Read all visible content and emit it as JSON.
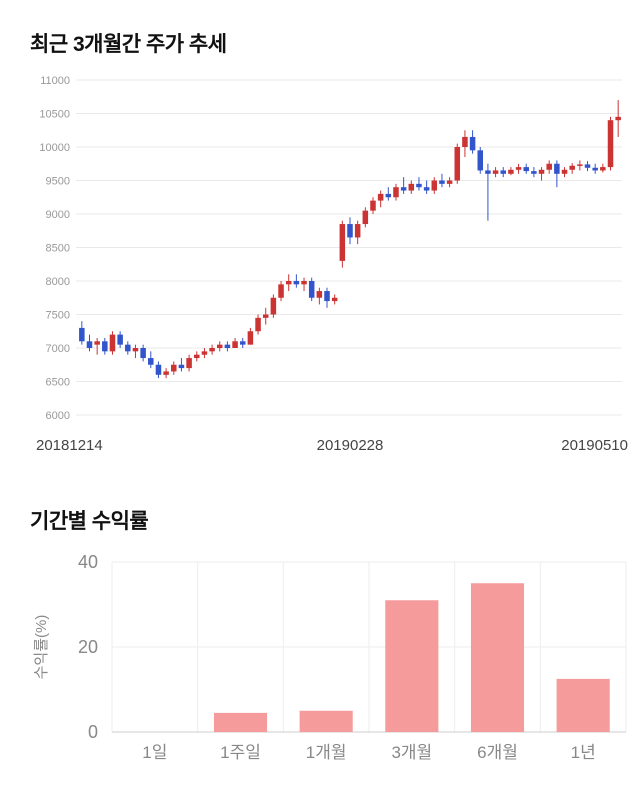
{
  "price_section": {
    "title": "최근 3개월간 주가 추세"
  },
  "returns_section": {
    "title": "기간별 수익률"
  },
  "chart_data": [
    {
      "type": "candlestick",
      "title": "최근 3개월간 주가 추세",
      "ylim": [
        6000,
        11000
      ],
      "ytick_step": 500,
      "x_labels": [
        "20181214",
        "20190228",
        "20190510"
      ],
      "up_color": "#cc3333",
      "down_color": "#3355cc",
      "grid": true,
      "candles": [
        [
          7300,
          7400,
          7050,
          7100
        ],
        [
          7100,
          7200,
          6950,
          7000
        ],
        [
          7050,
          7150,
          6900,
          7100
        ],
        [
          7100,
          7150,
          6900,
          6950
        ],
        [
          6950,
          7250,
          6900,
          7200
        ],
        [
          7200,
          7250,
          7000,
          7050
        ],
        [
          7050,
          7100,
          6900,
          6950
        ],
        [
          6950,
          7050,
          6850,
          7000
        ],
        [
          7000,
          7050,
          6800,
          6850
        ],
        [
          6850,
          6950,
          6700,
          6750
        ],
        [
          6750,
          6800,
          6550,
          6600
        ],
        [
          6600,
          6700,
          6550,
          6650
        ],
        [
          6650,
          6800,
          6600,
          6750
        ],
        [
          6750,
          6850,
          6650,
          6700
        ],
        [
          6700,
          6900,
          6650,
          6850
        ],
        [
          6850,
          6950,
          6800,
          6900
        ],
        [
          6900,
          7000,
          6850,
          6950
        ],
        [
          6950,
          7050,
          6900,
          7000
        ],
        [
          7000,
          7100,
          6950,
          7050
        ],
        [
          7050,
          7100,
          6950,
          7000
        ],
        [
          7000,
          7150,
          7000,
          7100
        ],
        [
          7100,
          7150,
          7000,
          7050
        ],
        [
          7050,
          7300,
          7050,
          7250
        ],
        [
          7250,
          7500,
          7200,
          7450
        ],
        [
          7450,
          7600,
          7350,
          7500
        ],
        [
          7500,
          7800,
          7450,
          7750
        ],
        [
          7750,
          8000,
          7700,
          7950
        ],
        [
          7950,
          8100,
          7850,
          8000
        ],
        [
          8000,
          8100,
          7900,
          7950
        ],
        [
          7950,
          8050,
          7850,
          8000
        ],
        [
          8000,
          8050,
          7700,
          7750
        ],
        [
          7750,
          7900,
          7650,
          7850
        ],
        [
          7850,
          7900,
          7600,
          7700
        ],
        [
          7700,
          7800,
          7650,
          7750
        ],
        [
          8300,
          8900,
          8200,
          8850
        ],
        [
          8850,
          8950,
          8550,
          8650
        ],
        [
          8650,
          8900,
          8550,
          8850
        ],
        [
          8850,
          9100,
          8800,
          9050
        ],
        [
          9050,
          9250,
          9000,
          9200
        ],
        [
          9200,
          9350,
          9100,
          9300
        ],
        [
          9300,
          9400,
          9200,
          9250
        ],
        [
          9250,
          9450,
          9200,
          9400
        ],
        [
          9400,
          9550,
          9300,
          9350
        ],
        [
          9350,
          9500,
          9300,
          9450
        ],
        [
          9450,
          9550,
          9350,
          9400
        ],
        [
          9400,
          9500,
          9300,
          9350
        ],
        [
          9350,
          9550,
          9300,
          9500
        ],
        [
          9500,
          9600,
          9400,
          9450
        ],
        [
          9450,
          9550,
          9400,
          9500
        ],
        [
          9500,
          10050,
          9450,
          10000
        ],
        [
          10000,
          10250,
          9850,
          10150
        ],
        [
          10150,
          10250,
          9900,
          9950
        ],
        [
          9950,
          10000,
          9600,
          9650
        ],
        [
          9650,
          9750,
          8900,
          9600
        ],
        [
          9600,
          9700,
          9550,
          9650
        ],
        [
          9650,
          9700,
          9550,
          9600
        ],
        [
          9600,
          9700,
          9580,
          9660
        ],
        [
          9660,
          9750,
          9600,
          9700
        ],
        [
          9700,
          9750,
          9600,
          9640
        ],
        [
          9640,
          9700,
          9550,
          9600
        ],
        [
          9600,
          9700,
          9500,
          9660
        ],
        [
          9660,
          9800,
          9600,
          9750
        ],
        [
          9750,
          9800,
          9400,
          9600
        ],
        [
          9600,
          9700,
          9550,
          9660
        ],
        [
          9660,
          9760,
          9600,
          9720
        ],
        [
          9720,
          9800,
          9650,
          9740
        ],
        [
          9740,
          9790,
          9640,
          9690
        ],
        [
          9690,
          9750,
          9600,
          9650
        ],
        [
          9650,
          9750,
          9620,
          9700
        ],
        [
          9700,
          10450,
          9650,
          10400
        ],
        [
          10400,
          10700,
          10150,
          10450
        ]
      ]
    },
    {
      "type": "bar",
      "title": "기간별 수익률",
      "ylabel": "수익률(%)",
      "categories": [
        "1일",
        "1주일",
        "1개월",
        "3개월",
        "6개월",
        "1년"
      ],
      "values": [
        0,
        4.5,
        5,
        31,
        35,
        12.5
      ],
      "ylim": [
        0,
        40
      ],
      "yticks": [
        0,
        20,
        40
      ],
      "bar_color": "#f59b9b",
      "axis_text_color": "#888888",
      "grid": true
    }
  ]
}
